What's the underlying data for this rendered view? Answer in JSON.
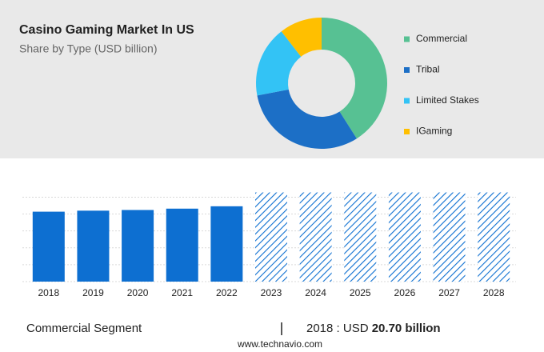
{
  "chart_data": [
    {
      "type": "donut",
      "title": "Casino Gaming Market In US",
      "subtitle": "Share by Type (USD billion)",
      "categories": [
        "Commercial",
        "Tribal",
        "Limited Stakes",
        "IGaming"
      ],
      "values": [
        41,
        31,
        17.5,
        10.5
      ],
      "colors": [
        "#57c193",
        "#1c6fc6",
        "#33c3f5",
        "#ffbf00"
      ]
    },
    {
      "type": "bar",
      "categories": [
        "2018",
        "2019",
        "2020",
        "2021",
        "2022",
        "2023",
        "2024",
        "2025",
        "2026",
        "2027",
        "2028"
      ],
      "values": [
        20.7,
        21.0,
        21.2,
        21.6,
        22.3,
        26.4,
        26.4,
        26.4,
        26.4,
        26.4,
        26.4
      ],
      "hatched": [
        false,
        false,
        false,
        false,
        false,
        true,
        true,
        true,
        true,
        true,
        true
      ],
      "color": "#0d6fd1",
      "ylim": [
        0,
        27
      ],
      "yticks": [
        0,
        5,
        10,
        15,
        20,
        25
      ],
      "grid": true
    }
  ],
  "footer": {
    "segment": "Commercial Segment",
    "year_text": "2018 : USD",
    "value_text": "20.70 billion"
  },
  "source": "www.technavio.com"
}
